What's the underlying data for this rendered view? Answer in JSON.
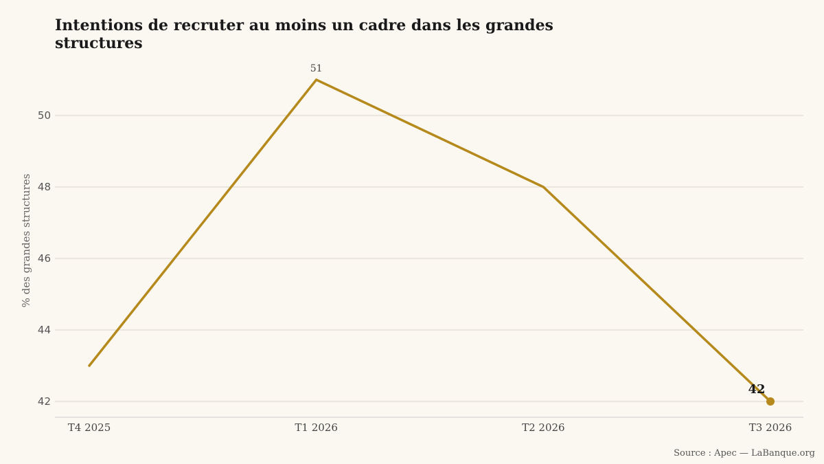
{
  "chart_data": {
    "type": "line",
    "title": "Intentions de recruter au moins un cadre dans les grandes structures",
    "ylabel": "% des grandes structures",
    "xlabel": "",
    "categories": [
      "T4 2025",
      "T1 2026",
      "T2 2026",
      "T3 2026"
    ],
    "series": [
      {
        "values": [
          43,
          51,
          48,
          42
        ]
      }
    ],
    "ylim": [
      41.5,
      51.5
    ],
    "yticks": [
      42,
      44,
      46,
      48,
      50
    ],
    "data_labels": [
      {
        "index": 1,
        "text": "51",
        "emphasis": false
      },
      {
        "index": 3,
        "text": "42",
        "emphasis": true
      }
    ],
    "grid": "horizontal",
    "colors": {
      "line": "#b5891c",
      "grid": "#ddd3cc",
      "axis": "#cccccc"
    }
  },
  "source": "Source : Apec — LaBanque.org"
}
